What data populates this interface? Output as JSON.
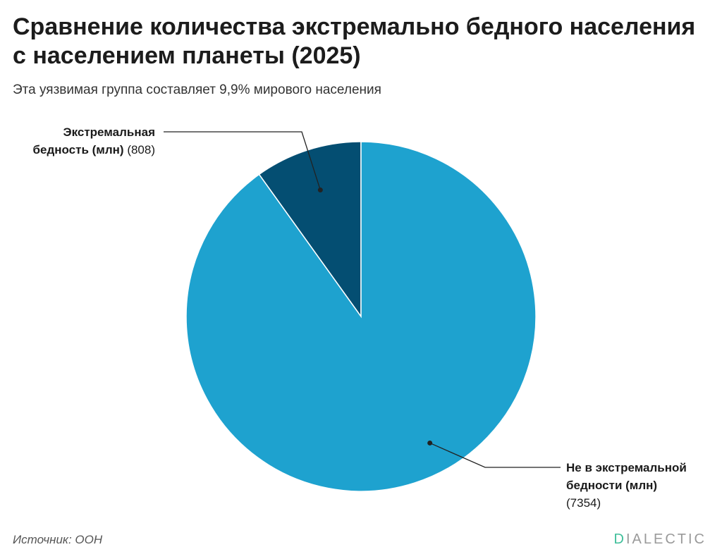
{
  "title_lines": [
    "Сравнение количества экстремально бедного населения",
    "с населением планеты (2025)"
  ],
  "subtitle": "Эта уязвимая группа составляет 9,9% мирового населения",
  "source": "Источник: ООН",
  "brand": {
    "first": "D",
    "rest": "IALECTIC"
  },
  "colors": {
    "poor": "#044e72",
    "not_poor": "#1ea2cf",
    "leader": "#222222"
  },
  "chart_data": {
    "type": "pie",
    "title": "Сравнение количества экстремально бедного населения с населением планеты (2025)",
    "subtitle": "Эта уязвимая группа составляет 9,9% мирового населения",
    "slices": [
      {
        "label_lines": [
          "Экстремальная",
          "бедность (млн)"
        ],
        "value": 808,
        "value_text": "(808)",
        "color": "#044e72"
      },
      {
        "label_lines": [
          "Не в экстремальной",
          "бедности (млн)"
        ],
        "value": 7354,
        "value_text": "(7354)",
        "color": "#1ea2cf"
      }
    ]
  }
}
